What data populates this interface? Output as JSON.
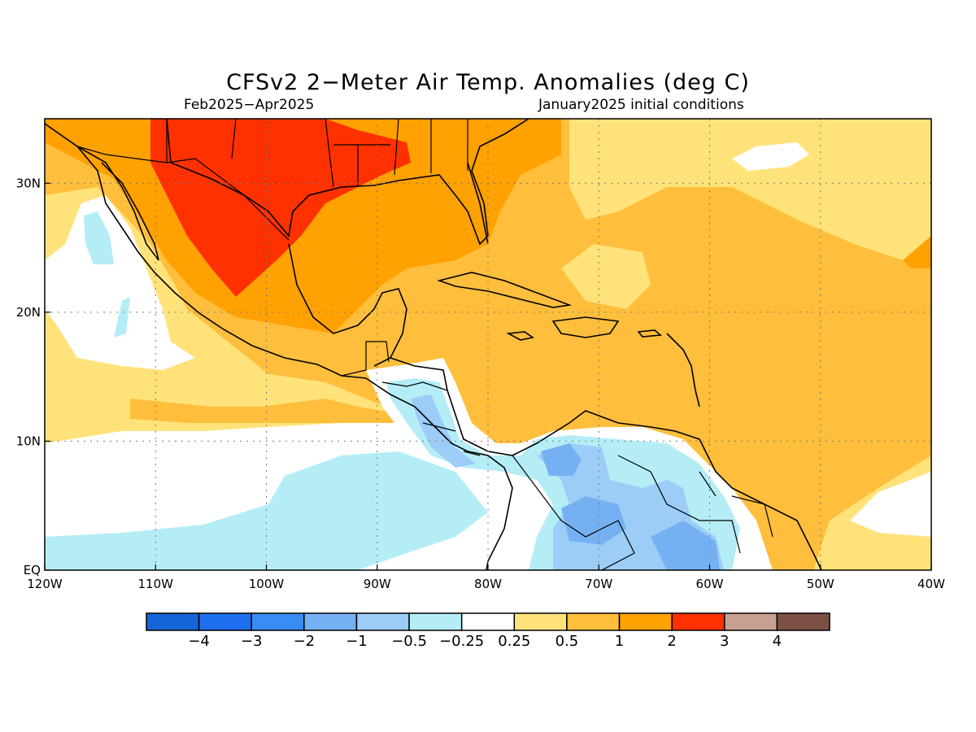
{
  "header": {
    "title": "CFSv2 2−Meter Air Temp. Anomalies (deg C)",
    "period": "Feb2025−Apr2025",
    "init": "January2025 initial conditions"
  },
  "map": {
    "lon_range": [
      -120,
      -40
    ],
    "lat_range": [
      0,
      35
    ],
    "grid": true,
    "x_ticks": [
      {
        "value": -120,
        "label": "120W"
      },
      {
        "value": -110,
        "label": "110W"
      },
      {
        "value": -100,
        "label": "100W"
      },
      {
        "value": -90,
        "label": "90W"
      },
      {
        "value": -80,
        "label": "80W"
      },
      {
        "value": -70,
        "label": "70W"
      },
      {
        "value": -60,
        "label": "60W"
      },
      {
        "value": -50,
        "label": "50W"
      },
      {
        "value": -40,
        "label": "40W"
      }
    ],
    "y_ticks": [
      {
        "value": 0,
        "label": "EQ"
      },
      {
        "value": 10,
        "label": "10N"
      },
      {
        "value": 20,
        "label": "20N"
      },
      {
        "value": 30,
        "label": "30N"
      }
    ]
  },
  "colorbar": {
    "colors": [
      "#1565d8",
      "#1e6ff0",
      "#3a8cf5",
      "#75b1f2",
      "#9ccdf7",
      "#b5edf7",
      "#ffffff",
      "#ffe37a",
      "#ffbe3c",
      "#ffa100",
      "#ff3100",
      "#c8a092",
      "#7d5046"
    ],
    "labels": [
      "−4",
      "−3",
      "−2",
      "−1",
      "−0.5",
      "−0.25",
      "0.25",
      "0.5",
      "1",
      "2",
      "3",
      "4"
    ]
  },
  "palette": {
    "white": "#ffffff",
    "pale_yellow": "#ffe37a",
    "light_orange": "#ffbe3c",
    "orange": "#ffa100",
    "red": "#ff3100",
    "pale_blue": "#b5edf7",
    "light_blue": "#9ccdf7",
    "mid_blue": "#75b1f2"
  }
}
